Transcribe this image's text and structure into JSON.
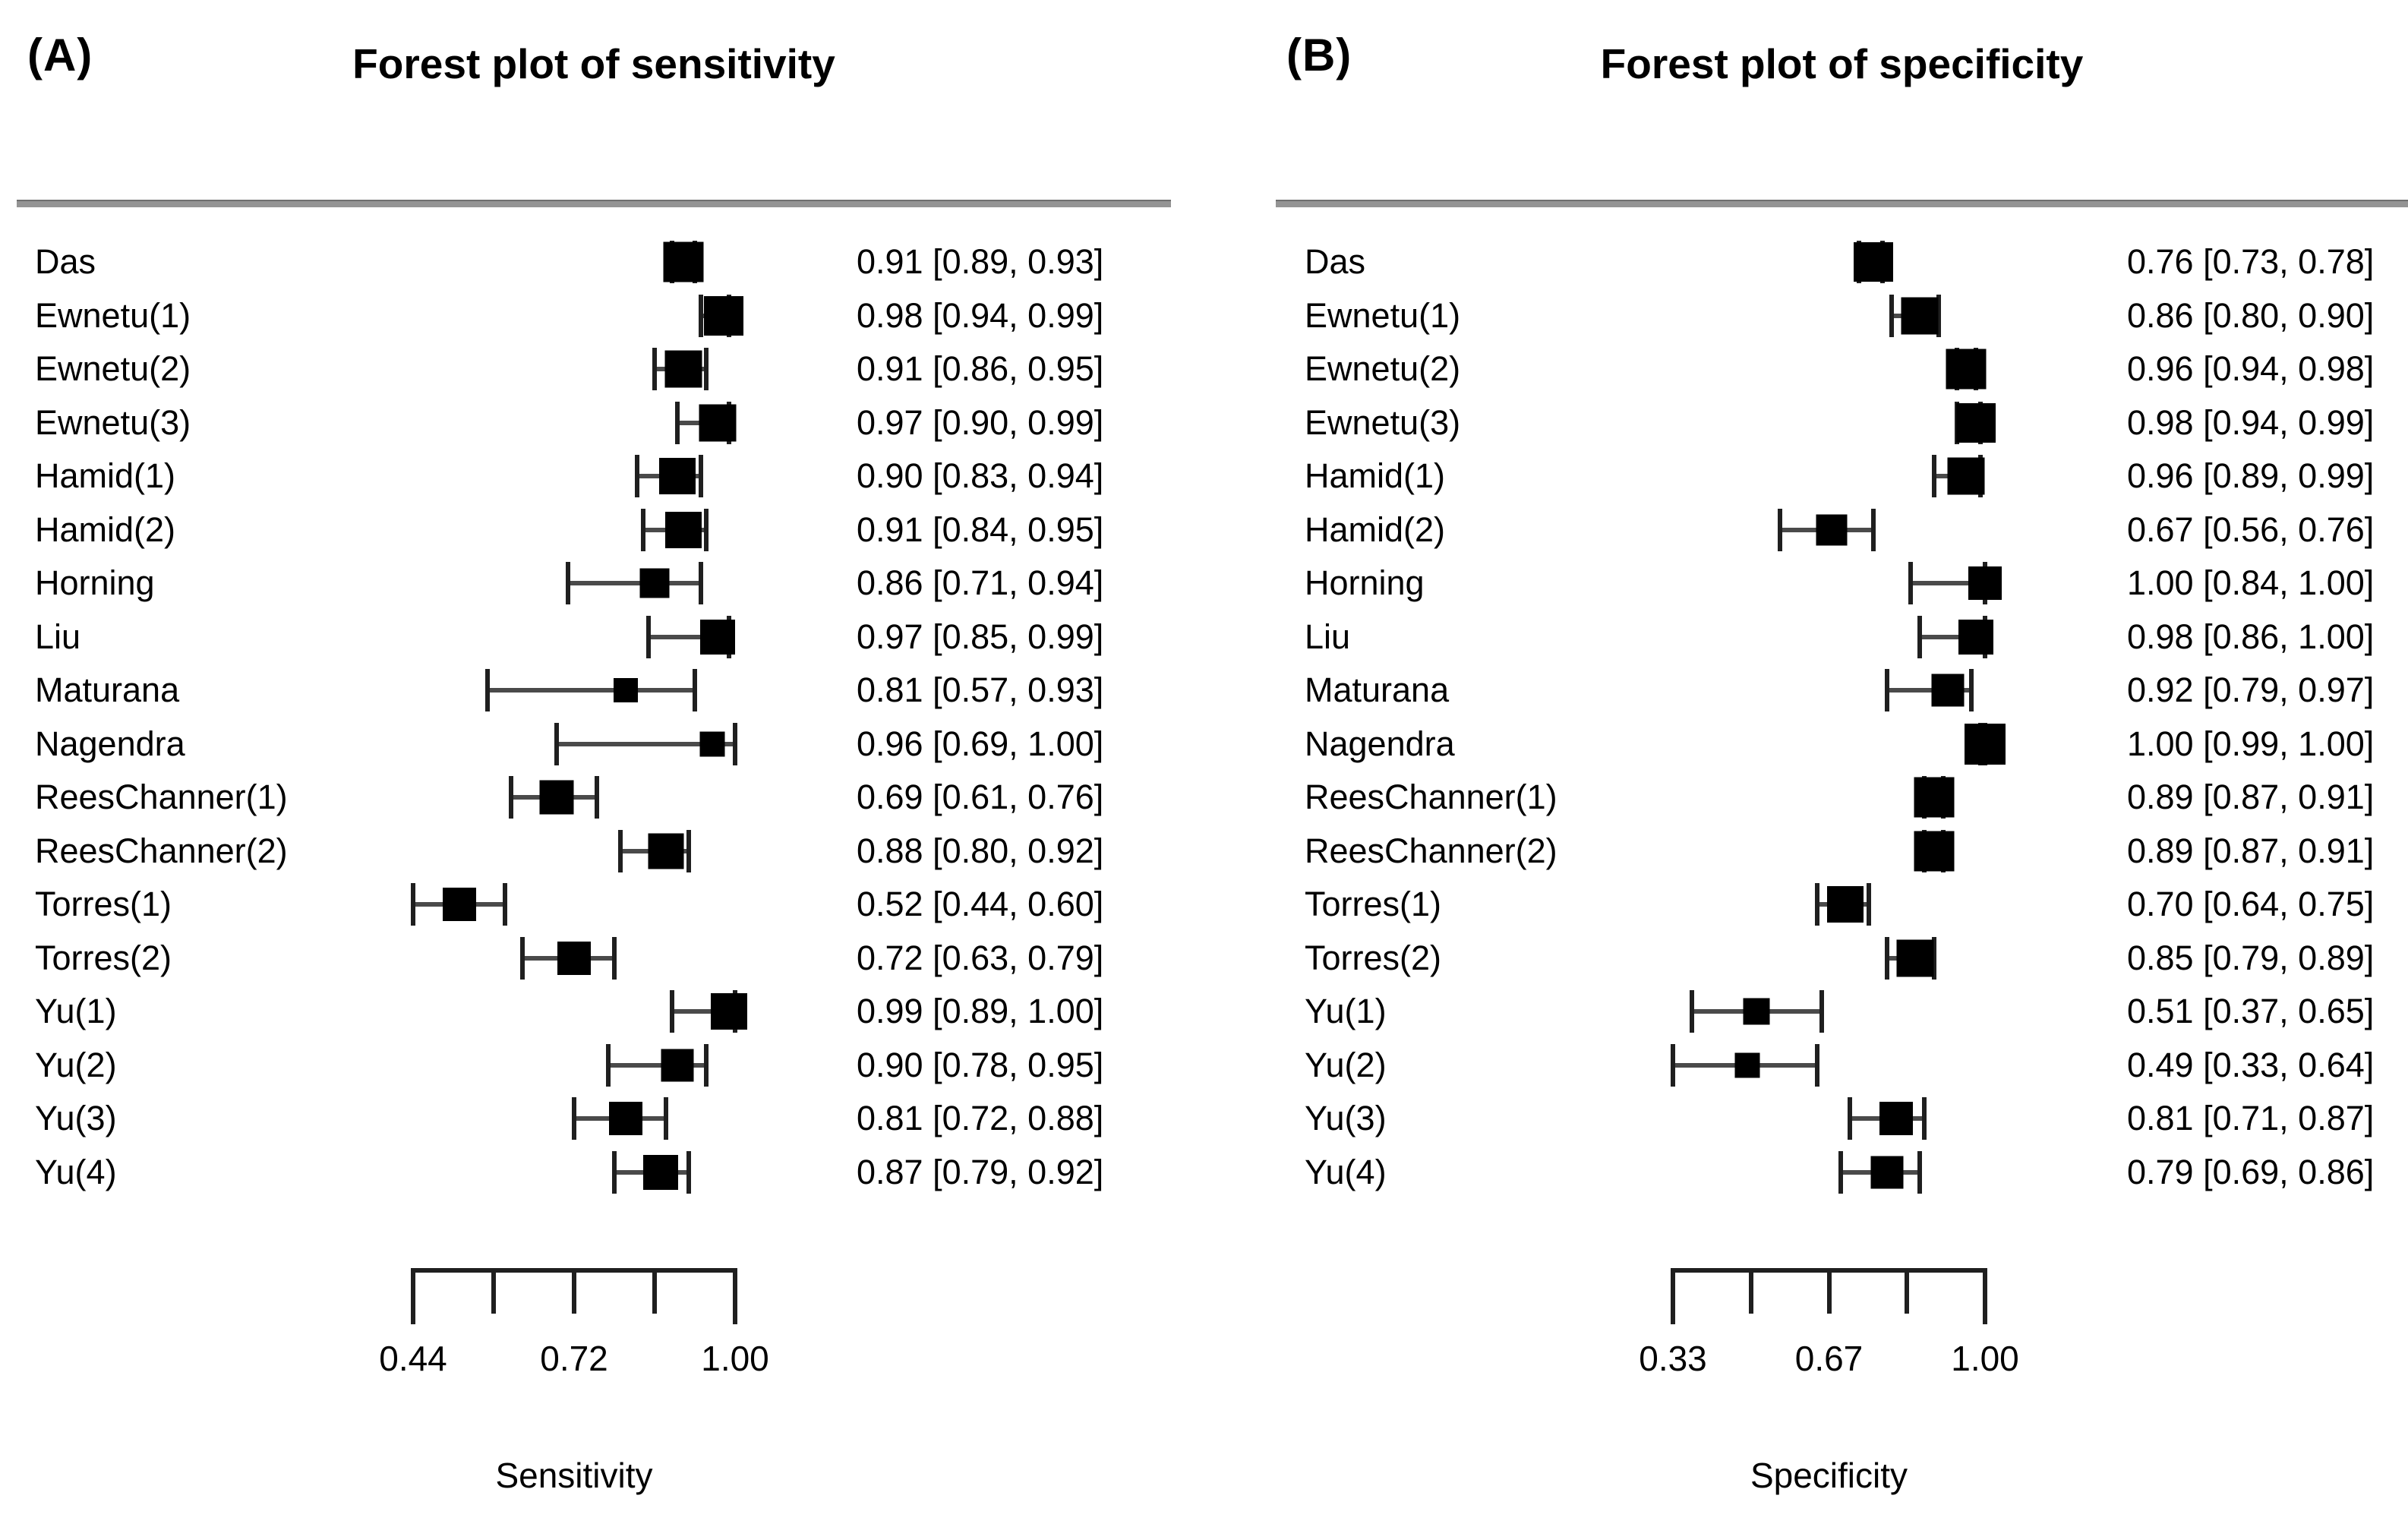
{
  "figure": {
    "background_color": "#ffffff",
    "text_color": "#000000",
    "rule_color": "#949494",
    "marker_color": "#000000",
    "ci_line_color": "#4a4a4a"
  },
  "chart_data": [
    {
      "type": "scatter",
      "variant": "forest_plot",
      "panel": "(A)",
      "title": "Forest plot of sensitivity",
      "xlabel": "Sensitivity",
      "xlim": [
        0.44,
        1.0
      ],
      "xticks": [
        "0.44",
        "0.72",
        "1.00"
      ],
      "grid": false,
      "legend": "none",
      "rows": [
        {
          "study": "Das",
          "estimate": 0.91,
          "ci_low": 0.89,
          "ci_high": 0.93,
          "label": "0.91 [0.89, 0.93]"
        },
        {
          "study": "Ewnetu(1)",
          "estimate": 0.98,
          "ci_low": 0.94,
          "ci_high": 0.99,
          "label": "0.98 [0.94, 0.99]"
        },
        {
          "study": "Ewnetu(2)",
          "estimate": 0.91,
          "ci_low": 0.86,
          "ci_high": 0.95,
          "label": "0.91 [0.86, 0.95]"
        },
        {
          "study": "Ewnetu(3)",
          "estimate": 0.97,
          "ci_low": 0.9,
          "ci_high": 0.99,
          "label": "0.97 [0.90, 0.99]"
        },
        {
          "study": "Hamid(1)",
          "estimate": 0.9,
          "ci_low": 0.83,
          "ci_high": 0.94,
          "label": "0.90 [0.83, 0.94]"
        },
        {
          "study": "Hamid(2)",
          "estimate": 0.91,
          "ci_low": 0.84,
          "ci_high": 0.95,
          "label": "0.91 [0.84, 0.95]"
        },
        {
          "study": "Horning",
          "estimate": 0.86,
          "ci_low": 0.71,
          "ci_high": 0.94,
          "label": "0.86 [0.71, 0.94]"
        },
        {
          "study": "Liu",
          "estimate": 0.97,
          "ci_low": 0.85,
          "ci_high": 0.99,
          "label": "0.97 [0.85, 0.99]"
        },
        {
          "study": "Maturana",
          "estimate": 0.81,
          "ci_low": 0.57,
          "ci_high": 0.93,
          "label": "0.81 [0.57, 0.93]"
        },
        {
          "study": "Nagendra",
          "estimate": 0.96,
          "ci_low": 0.69,
          "ci_high": 1.0,
          "label": "0.96 [0.69, 1.00]"
        },
        {
          "study": "ReesChanner(1)",
          "estimate": 0.69,
          "ci_low": 0.61,
          "ci_high": 0.76,
          "label": "0.69 [0.61, 0.76]"
        },
        {
          "study": "ReesChanner(2)",
          "estimate": 0.88,
          "ci_low": 0.8,
          "ci_high": 0.92,
          "label": "0.88 [0.80, 0.92]"
        },
        {
          "study": "Torres(1)",
          "estimate": 0.52,
          "ci_low": 0.44,
          "ci_high": 0.6,
          "label": "0.52 [0.44, 0.60]"
        },
        {
          "study": "Torres(2)",
          "estimate": 0.72,
          "ci_low": 0.63,
          "ci_high": 0.79,
          "label": "0.72 [0.63, 0.79]"
        },
        {
          "study": "Yu(1)",
          "estimate": 0.99,
          "ci_low": 0.89,
          "ci_high": 1.0,
          "label": "0.99 [0.89, 1.00]"
        },
        {
          "study": "Yu(2)",
          "estimate": 0.9,
          "ci_low": 0.78,
          "ci_high": 0.95,
          "label": "0.90 [0.78, 0.95]"
        },
        {
          "study": "Yu(3)",
          "estimate": 0.81,
          "ci_low": 0.72,
          "ci_high": 0.88,
          "label": "0.81 [0.72, 0.88]"
        },
        {
          "study": "Yu(4)",
          "estimate": 0.87,
          "ci_low": 0.79,
          "ci_high": 0.92,
          "label": "0.87 [0.79, 0.92]"
        }
      ]
    },
    {
      "type": "scatter",
      "variant": "forest_plot",
      "panel": "(B)",
      "title": "Forest plot of specificity",
      "xlabel": "Specificity",
      "xlim": [
        0.33,
        1.0
      ],
      "xticks": [
        "0.33",
        "0.67",
        "1.00"
      ],
      "grid": false,
      "legend": "none",
      "rows": [
        {
          "study": "Das",
          "estimate": 0.76,
          "ci_low": 0.73,
          "ci_high": 0.78,
          "label": "0.76 [0.73, 0.78]"
        },
        {
          "study": "Ewnetu(1)",
          "estimate": 0.86,
          "ci_low": 0.8,
          "ci_high": 0.9,
          "label": "0.86 [0.80, 0.90]"
        },
        {
          "study": "Ewnetu(2)",
          "estimate": 0.96,
          "ci_low": 0.94,
          "ci_high": 0.98,
          "label": "0.96 [0.94, 0.98]"
        },
        {
          "study": "Ewnetu(3)",
          "estimate": 0.98,
          "ci_low": 0.94,
          "ci_high": 0.99,
          "label": "0.98 [0.94, 0.99]"
        },
        {
          "study": "Hamid(1)",
          "estimate": 0.96,
          "ci_low": 0.89,
          "ci_high": 0.99,
          "label": "0.96 [0.89, 0.99]"
        },
        {
          "study": "Hamid(2)",
          "estimate": 0.67,
          "ci_low": 0.56,
          "ci_high": 0.76,
          "label": "0.67 [0.56, 0.76]"
        },
        {
          "study": "Horning",
          "estimate": 1.0,
          "ci_low": 0.84,
          "ci_high": 1.0,
          "label": "1.00 [0.84, 1.00]"
        },
        {
          "study": "Liu",
          "estimate": 0.98,
          "ci_low": 0.86,
          "ci_high": 1.0,
          "label": "0.98 [0.86, 1.00]"
        },
        {
          "study": "Maturana",
          "estimate": 0.92,
          "ci_low": 0.79,
          "ci_high": 0.97,
          "label": "0.92 [0.79, 0.97]"
        },
        {
          "study": "Nagendra",
          "estimate": 1.0,
          "ci_low": 0.99,
          "ci_high": 1.0,
          "label": "1.00 [0.99, 1.00]"
        },
        {
          "study": "ReesChanner(1)",
          "estimate": 0.89,
          "ci_low": 0.87,
          "ci_high": 0.91,
          "label": "0.89 [0.87, 0.91]"
        },
        {
          "study": "ReesChanner(2)",
          "estimate": 0.89,
          "ci_low": 0.87,
          "ci_high": 0.91,
          "label": "0.89 [0.87, 0.91]"
        },
        {
          "study": "Torres(1)",
          "estimate": 0.7,
          "ci_low": 0.64,
          "ci_high": 0.75,
          "label": "0.70 [0.64, 0.75]"
        },
        {
          "study": "Torres(2)",
          "estimate": 0.85,
          "ci_low": 0.79,
          "ci_high": 0.89,
          "label": "0.85 [0.79, 0.89]"
        },
        {
          "study": "Yu(1)",
          "estimate": 0.51,
          "ci_low": 0.37,
          "ci_high": 0.65,
          "label": "0.51 [0.37, 0.65]"
        },
        {
          "study": "Yu(2)",
          "estimate": 0.49,
          "ci_low": 0.33,
          "ci_high": 0.64,
          "label": "0.49 [0.33, 0.64]"
        },
        {
          "study": "Yu(3)",
          "estimate": 0.81,
          "ci_low": 0.71,
          "ci_high": 0.87,
          "label": "0.81 [0.71, 0.87]"
        },
        {
          "study": "Yu(4)",
          "estimate": 0.79,
          "ci_low": 0.69,
          "ci_high": 0.86,
          "label": "0.79 [0.69, 0.86]"
        }
      ]
    }
  ]
}
